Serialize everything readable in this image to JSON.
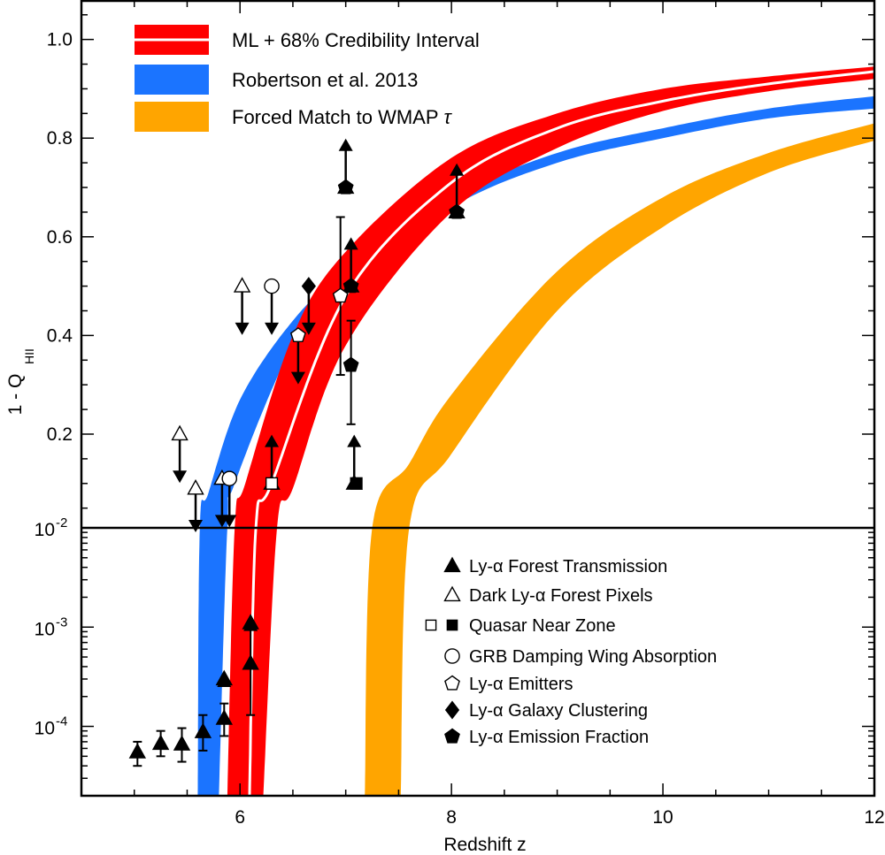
{
  "chart_data": {
    "type": "line",
    "xlabel": "Redshift z",
    "ylabel": "1 - Q",
    "ylabel_sub": "HII",
    "xlim": [
      4.5,
      12
    ],
    "x_ticks": [
      "6",
      "8",
      "10",
      "12"
    ],
    "upper_panel": {
      "scale": "linear",
      "ylim": [
        0.01,
        1.08
      ],
      "y_ticks": [
        "0.2",
        "0.4",
        "0.6",
        "0.8",
        "1.0"
      ]
    },
    "lower_panel": {
      "scale": "log",
      "ylim": [
        2e-05,
        0.01
      ]
    },
    "y_tick_labels_log": [
      {
        "base": "10",
        "exp": "-2"
      },
      {
        "base": "10",
        "exp": "-3"
      },
      {
        "base": "10",
        "exp": "-4"
      }
    ],
    "bands": [
      {
        "name": "ML + 68% Credibility Interval",
        "color": "#ff0000",
        "lower_z": [
          6.22,
          6.35,
          6.5,
          7.0,
          8.0,
          9.0,
          10.0,
          11.0,
          12.0
        ],
        "lower_y": [
          2e-05,
          0.01,
          0.09,
          0.38,
          0.65,
          0.78,
          0.855,
          0.895,
          0.92
        ],
        "upper_z": [
          5.88,
          5.95,
          6.05,
          6.5,
          7.0,
          8.0,
          9.0,
          10.0,
          11.0,
          12.0
        ],
        "upper_y": [
          2e-05,
          0.01,
          0.1,
          0.4,
          0.57,
          0.76,
          0.85,
          0.9,
          0.925,
          0.945
        ],
        "ml_z": [
          6.09,
          6.15,
          6.3,
          7.0,
          8.0,
          9.0,
          10.0,
          11.0,
          12.0
        ],
        "ml_y": [
          2e-05,
          0.01,
          0.1,
          0.48,
          0.71,
          0.82,
          0.875,
          0.91,
          0.935
        ]
      },
      {
        "name": "Robertson et al. 2013",
        "color": "#1b74ff",
        "lower_z": [
          5.8,
          5.88,
          5.95,
          6.5,
          7.0,
          8.0,
          9.0,
          10.0,
          11.0,
          12.0
        ],
        "lower_y": [
          2e-05,
          0.01,
          0.1,
          0.38,
          0.5,
          0.66,
          0.75,
          0.8,
          0.84,
          0.86
        ],
        "upper_z": [
          5.6,
          5.62,
          5.7,
          6.0,
          6.5,
          7.0,
          8.0,
          9.0,
          10.0,
          11.0,
          12.0
        ],
        "upper_y": [
          2e-05,
          0.01,
          0.08,
          0.27,
          0.43,
          0.53,
          0.68,
          0.77,
          0.82,
          0.86,
          0.885
        ]
      },
      {
        "name": "Forced Match to WMAP τ",
        "color": "#ffa500",
        "lower_z": [
          7.52,
          7.6,
          8.0,
          9.0,
          10.0,
          11.0,
          12.0
        ],
        "lower_y": [
          2e-05,
          0.01,
          0.16,
          0.45,
          0.62,
          0.73,
          0.795
        ],
        "upper_z": [
          7.18,
          7.25,
          7.6,
          8.0,
          9.0,
          10.0,
          11.0,
          12.0
        ],
        "upper_y": [
          2e-05,
          0.01,
          0.14,
          0.28,
          0.53,
          0.68,
          0.77,
          0.83
        ]
      }
    ],
    "band_legend": [
      {
        "label": "ML + 68% Credibility Interval",
        "color": "#ff0000",
        "ml_line": true
      },
      {
        "label": "Robertson et al. 2013",
        "color": "#1b74ff",
        "ml_line": false
      },
      {
        "label": "Forced Match to WMAP",
        "tau": "τ",
        "color": "#ffa500",
        "ml_line": false
      }
    ],
    "marker_legend": [
      {
        "label": "Ly-α Forest Transmission",
        "symbols": [
          "tri-filled"
        ]
      },
      {
        "label": "Dark Ly-α Forest Pixels",
        "symbols": [
          "tri-open"
        ]
      },
      {
        "label": "Quasar Near Zone",
        "symbols": [
          "sq-open",
          "sq-filled"
        ]
      },
      {
        "label": "GRB Damping Wing Absorption",
        "symbols": [
          "circ-open"
        ]
      },
      {
        "label": "Ly-α Emitters",
        "symbols": [
          "pent-open"
        ]
      },
      {
        "label": "Ly-α Galaxy Clustering",
        "symbols": [
          "diam-filled"
        ]
      },
      {
        "label": "Ly-α Emission Fraction",
        "symbols": [
          "pent-filled"
        ]
      }
    ],
    "series": [
      {
        "name": "Ly-α Forest Transmission",
        "symbol": "tri-filled",
        "points": [
          {
            "x": 5.03,
            "y": 5.5e-05,
            "yerr_lo": 4e-05,
            "yerr_hi": 7e-05
          },
          {
            "x": 5.25,
            "y": 6.7e-05,
            "yerr_lo": 5e-05,
            "yerr_hi": 9e-05
          },
          {
            "x": 5.45,
            "y": 6.6e-05,
            "yerr_lo": 4.4e-05,
            "yerr_hi": 9.6e-05
          },
          {
            "x": 5.65,
            "y": 8.8e-05,
            "yerr_lo": 5.7e-05,
            "yerr_hi": 0.00013
          },
          {
            "x": 5.85,
            "y": 0.00012,
            "yerr_lo": 8e-05,
            "yerr_hi": 0.00017
          },
          {
            "x": 5.85,
            "y": 0.0003,
            "limit": "lower",
            "arrow_to": 0.0003
          },
          {
            "x": 6.1,
            "y": 0.00043,
            "yerr_lo": 0.00013,
            "yerr_hi": 0.0011
          },
          {
            "x": 6.1,
            "y": 0.0011,
            "limit": "lower",
            "arrow_to": 0.0011
          }
        ]
      },
      {
        "name": "Ly-α Forest Transmission (limits)",
        "symbol": "tri-filled",
        "points": [
          {
            "x": 6.3,
            "y": 0.1,
            "limit": "lower",
            "arrow_to": 0.19
          },
          {
            "x": 7.0,
            "y": 0.7,
            "limit": "lower",
            "arrow_to": 0.79
          },
          {
            "x": 7.05,
            "y": 0.5,
            "limit": "lower",
            "arrow_to": 0.59
          },
          {
            "x": 7.08,
            "y": 0.1,
            "limit": "lower",
            "arrow_to": 0.19
          },
          {
            "x": 8.05,
            "y": 0.65,
            "limit": "lower",
            "arrow_to": 0.74
          }
        ]
      },
      {
        "name": "Dark Ly-α Forest Pixels",
        "symbol": "tri-open",
        "points": [
          {
            "x": 5.43,
            "y": 0.2,
            "limit": "upper",
            "arrow_to": 0.11
          },
          {
            "x": 5.58,
            "y": 0.09,
            "limit": "upper",
            "arrow_to": 0.01
          },
          {
            "x": 5.83,
            "y": 0.11,
            "limit": "upper",
            "arrow_to": 0.02
          },
          {
            "x": 6.02,
            "y": 0.5,
            "limit": "upper",
            "arrow_to": 0.41
          }
        ]
      },
      {
        "name": "Quasar Near Zone",
        "symbol": "sq-open",
        "points": [
          {
            "x": 6.3,
            "y": 0.1
          }
        ]
      },
      {
        "name": "Quasar Near Zone",
        "symbol": "sq-filled",
        "points": [
          {
            "x": 7.1,
            "y": 0.1
          }
        ]
      },
      {
        "name": "GRB Damping Wing Absorption",
        "symbol": "circ-open",
        "points": [
          {
            "x": 5.9,
            "y": 0.11,
            "limit": "upper",
            "arrow_to": 0.02
          },
          {
            "x": 6.3,
            "y": 0.5,
            "limit": "upper",
            "arrow_to": 0.41
          }
        ]
      },
      {
        "name": "Ly-α Emitters",
        "symbol": "pent-open",
        "points": [
          {
            "x": 6.55,
            "y": 0.4,
            "limit": "upper",
            "arrow_to": 0.31
          },
          {
            "x": 6.95,
            "y": 0.48,
            "yerr_lo": 0.32,
            "yerr_hi": 0.64
          }
        ]
      },
      {
        "name": "Ly-α Galaxy Clustering",
        "symbol": "diam-filled",
        "points": [
          {
            "x": 6.65,
            "y": 0.5,
            "limit": "upper",
            "arrow_to": 0.41
          }
        ]
      },
      {
        "name": "Ly-α Emission Fraction",
        "symbol": "pent-filled",
        "points": [
          {
            "x": 7.0,
            "y": 0.7
          },
          {
            "x": 7.05,
            "y": 0.5
          },
          {
            "x": 7.05,
            "y": 0.34,
            "yerr_lo": 0.22,
            "yerr_hi": 0.43
          },
          {
            "x": 8.05,
            "y": 0.65
          }
        ]
      }
    ]
  }
}
